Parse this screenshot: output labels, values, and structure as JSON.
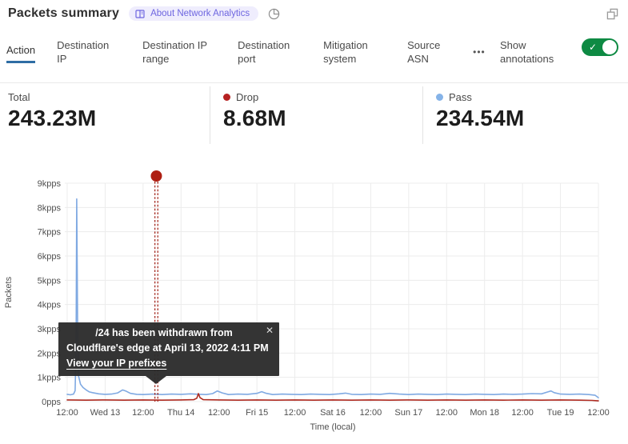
{
  "header": {
    "title": "Packets summary",
    "badge_label": "About Network Analytics"
  },
  "icons": {
    "more": "•••",
    "check": "✓",
    "close": "✕"
  },
  "tabs": {
    "items": [
      {
        "label": "Action",
        "active": true
      },
      {
        "label": "Destination IP"
      },
      {
        "label": "Destination IP range"
      },
      {
        "label": "Destination port"
      },
      {
        "label": "Mitigation system"
      },
      {
        "label": "Source ASN"
      }
    ],
    "annotations_label": "Show annotations",
    "annotations_on": true
  },
  "stats": {
    "items": [
      {
        "label": "Total",
        "value": "243.23M"
      },
      {
        "label": "Drop",
        "value": "8.68M",
        "dot_color": "#b62121"
      },
      {
        "label": "Pass",
        "value": "234.54M",
        "dot_color": "#85b3e8"
      }
    ]
  },
  "tooltip": {
    "line1": "/24 has been withdrawn from",
    "line2": "Cloudflare's edge at April 13, 2022 4:11 PM",
    "link_label": "View your IP prefixes"
  },
  "colors": {
    "active_tab_underline": "#2e6da4",
    "toggle_green": "#0e8a43",
    "drop_red": "#b62121",
    "pass_blue": "#85b3e8",
    "annotation_red": "#9e1d12",
    "grid": "#ececec"
  },
  "chart_data": {
    "type": "line",
    "title": "Packets summary",
    "xlabel": "Time (local)",
    "ylabel": "Packets",
    "grid": true,
    "ylim": [
      0,
      9
    ],
    "y_unit": "kpps",
    "x_hours_range": 168,
    "x_ticks": [
      "12:00",
      "Wed 13",
      "12:00",
      "Thu 14",
      "12:00",
      "Fri 15",
      "12:00",
      "Sat 16",
      "12:00",
      "Sun 17",
      "12:00",
      "Mon 18",
      "12:00",
      "Tue 19",
      "12:00"
    ],
    "y_ticks": [
      "9kpps",
      "8kpps",
      "7kpps",
      "6kpps",
      "5kpps",
      "4kpps",
      "3kpps",
      "2kpps",
      "1kpps",
      "0pps"
    ],
    "series": [
      {
        "name": "Pass",
        "color": "#7fa9e2",
        "points": [
          [
            0,
            0.3
          ],
          [
            1,
            0.28
          ],
          [
            2,
            0.31
          ],
          [
            2.5,
            0.45
          ],
          [
            2.8,
            2.2
          ],
          [
            3,
            8.35
          ],
          [
            3.3,
            3.2
          ],
          [
            3.6,
            1.05
          ],
          [
            4.2,
            0.72
          ],
          [
            5,
            0.58
          ],
          [
            6,
            0.48
          ],
          [
            7,
            0.4
          ],
          [
            8,
            0.37
          ],
          [
            10,
            0.32
          ],
          [
            12,
            0.3
          ],
          [
            14,
            0.31
          ],
          [
            16,
            0.36
          ],
          [
            17.5,
            0.48
          ],
          [
            18.5,
            0.44
          ],
          [
            20,
            0.34
          ],
          [
            22,
            0.3
          ],
          [
            24,
            0.29
          ],
          [
            27,
            0.31
          ],
          [
            30,
            0.29
          ],
          [
            33,
            0.31
          ],
          [
            36,
            0.3
          ],
          [
            39,
            0.32
          ],
          [
            42,
            0.3
          ],
          [
            44,
            0.29
          ],
          [
            46,
            0.33
          ],
          [
            47.5,
            0.44
          ],
          [
            49,
            0.36
          ],
          [
            51,
            0.29
          ],
          [
            54,
            0.31
          ],
          [
            57,
            0.3
          ],
          [
            60,
            0.34
          ],
          [
            61.5,
            0.41
          ],
          [
            63,
            0.34
          ],
          [
            65,
            0.29
          ],
          [
            68,
            0.31
          ],
          [
            71,
            0.3
          ],
          [
            74,
            0.29
          ],
          [
            77,
            0.31
          ],
          [
            80,
            0.3
          ],
          [
            83,
            0.29
          ],
          [
            86,
            0.32
          ],
          [
            88,
            0.35
          ],
          [
            90,
            0.3
          ],
          [
            93,
            0.29
          ],
          [
            96,
            0.31
          ],
          [
            99,
            0.3
          ],
          [
            102,
            0.34
          ],
          [
            105,
            0.31
          ],
          [
            108,
            0.29
          ],
          [
            111,
            0.31
          ],
          [
            114,
            0.3
          ],
          [
            117,
            0.29
          ],
          [
            120,
            0.31
          ],
          [
            123,
            0.3
          ],
          [
            126,
            0.29
          ],
          [
            129,
            0.31
          ],
          [
            132,
            0.3
          ],
          [
            135,
            0.29
          ],
          [
            138,
            0.31
          ],
          [
            141,
            0.3
          ],
          [
            144,
            0.31
          ],
          [
            147,
            0.33
          ],
          [
            150,
            0.32
          ],
          [
            152,
            0.4
          ],
          [
            153,
            0.44
          ],
          [
            154,
            0.37
          ],
          [
            156,
            0.31
          ],
          [
            159,
            0.3
          ],
          [
            162,
            0.31
          ],
          [
            165,
            0.29
          ],
          [
            167,
            0.26
          ],
          [
            168,
            0.16
          ]
        ]
      },
      {
        "name": "Drop",
        "color": "#ae2a20",
        "points": [
          [
            0,
            0.07
          ],
          [
            6,
            0.06
          ],
          [
            12,
            0.07
          ],
          [
            18,
            0.06
          ],
          [
            24,
            0.07
          ],
          [
            30,
            0.06
          ],
          [
            36,
            0.07
          ],
          [
            40,
            0.08
          ],
          [
            41,
            0.14
          ],
          [
            41.5,
            0.33
          ],
          [
            42,
            0.16
          ],
          [
            43,
            0.08
          ],
          [
            48,
            0.07
          ],
          [
            54,
            0.06
          ],
          [
            60,
            0.07
          ],
          [
            66,
            0.06
          ],
          [
            72,
            0.07
          ],
          [
            78,
            0.06
          ],
          [
            84,
            0.07
          ],
          [
            90,
            0.06
          ],
          [
            96,
            0.07
          ],
          [
            102,
            0.06
          ],
          [
            108,
            0.07
          ],
          [
            114,
            0.06
          ],
          [
            120,
            0.07
          ],
          [
            126,
            0.06
          ],
          [
            132,
            0.07
          ],
          [
            138,
            0.06
          ],
          [
            144,
            0.07
          ],
          [
            150,
            0.06
          ],
          [
            156,
            0.07
          ],
          [
            162,
            0.06
          ],
          [
            166,
            0.05
          ],
          [
            168,
            0.03
          ]
        ]
      }
    ],
    "annotation": {
      "x_hours": 28.2,
      "marker_color": "#ae1e12",
      "line_color": "#9e1d12",
      "label": "IP prefix withdrawn from Cloudflare's edge"
    }
  }
}
